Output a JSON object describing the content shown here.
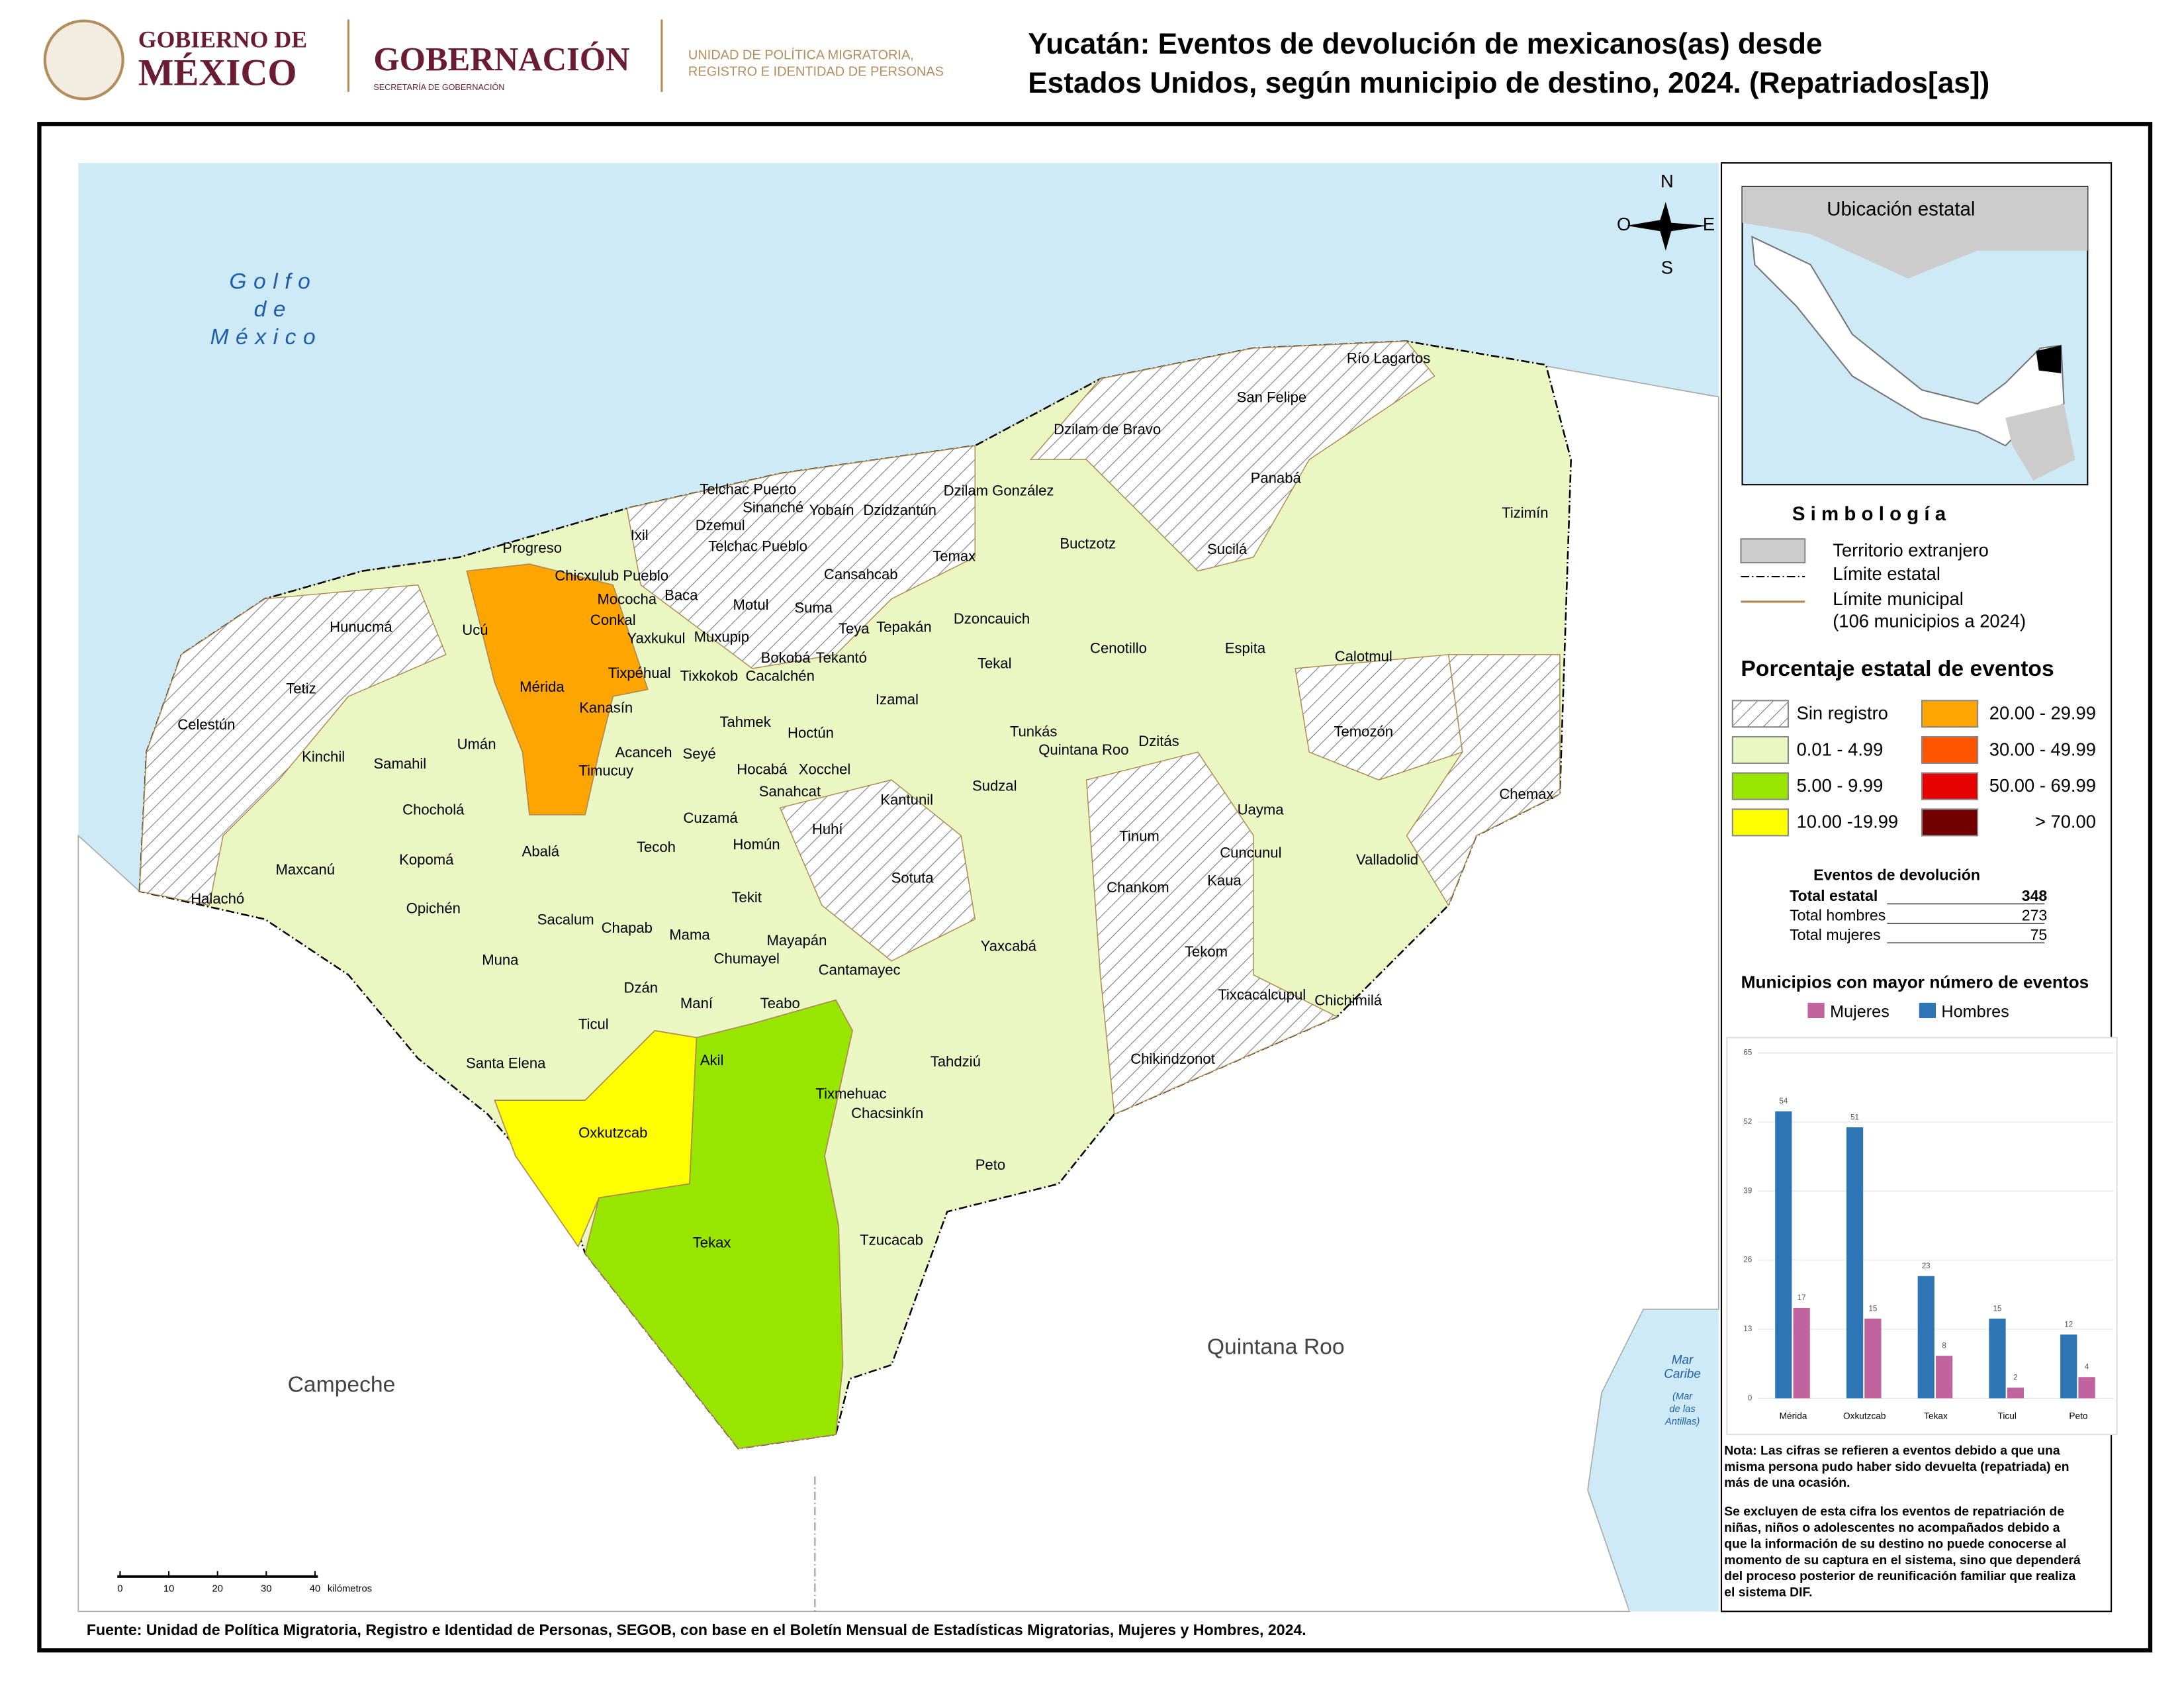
{
  "header": {
    "logo1_line1": "GOBIERNO DE",
    "logo1_line2": "MÉXICO",
    "logo2": "GOBERNACIÓN",
    "logo2_sub": "SECRETARÍA DE GOBERNACIÓN",
    "logo3_line1": "UNIDAD DE POLÍTICA MIGRATORIA,",
    "logo3_line2": "REGISTRO E IDENTIDAD DE PERSONAS"
  },
  "title": [
    "Yucatán: Eventos de devolución de mexicanos(as) desde",
    "Estados Unidos, según municipio de destino, 2024. (Repatriados[as])"
  ],
  "map": {
    "sea_label": [
      "Golfo",
      "de",
      "México"
    ],
    "neighbors": [
      "Campeche",
      "Quintana Roo"
    ],
    "caribe": [
      "Mar",
      "Caribe",
      "(Mar",
      "de las",
      "Antillas)"
    ],
    "compass": [
      "N",
      "O",
      "E",
      "S"
    ],
    "scale": {
      "ticks": [
        0,
        10,
        20,
        30,
        40
      ],
      "unit": "kilómetros"
    },
    "municipalities": [
      "Río Lagartos",
      "San Felipe",
      "Dzilam de Bravo",
      "Panabá",
      "Telchac Puerto",
      "Dzilam González",
      "Sinanché",
      "Yobaín",
      "Dzidzantún",
      "Tizimín",
      "Dzemul",
      "Ixil",
      "Progreso",
      "Telchac Pueblo",
      "Buctzotz",
      "Temax",
      "Sucilá",
      "Chicxulub Pueblo",
      "Cansahcab",
      "Mococha",
      "Baca",
      "Motul",
      "Suma",
      "Dzoncauich",
      "Hunucmá",
      "Conkal",
      "Ucú",
      "Teya",
      "Tepakán",
      "Yaxkukul",
      "Muxupip",
      "Cenotillo",
      "Espita",
      "Calotmul",
      "Bokobá",
      "Tekantó",
      "Tekal",
      "Tixpéhual",
      "Tixkokob",
      "Cacalchén",
      "Tetiz",
      "Mérida",
      "Izamal",
      "Kanasín",
      "Celestún",
      "Tahmek",
      "Hoctún",
      "Tunkás",
      "Temozón",
      "Dzitás",
      "Quintana Roo",
      "Umán",
      "Acanceh",
      "Seyé",
      "Kinchil",
      "Samahil",
      "Timucuy",
      "Hocabá",
      "Xocchel",
      "Sanahcat",
      "Sudzal",
      "Chemax",
      "Kantunil",
      "Chocholá",
      "Cuzamá",
      "Uayma",
      "Huhí",
      "Tinum",
      "Abalá",
      "Tecoh",
      "Homún",
      "Cuncunul",
      "Kopomá",
      "Valladolid",
      "Maxcanú",
      "Sotuta",
      "Kaua",
      "Chankom",
      "Tekit",
      "Halachó",
      "Opichén",
      "Sacalum",
      "Chapab",
      "Mama",
      "Mayapán",
      "Tekom",
      "Yaxcabá",
      "Muna",
      "Chumayel",
      "Cantamayec",
      "Tixcacalcupul",
      "Chichimilá",
      "Dzán",
      "Maní",
      "Teabo",
      "Ticul",
      "Chikindzonot",
      "Tahdziú",
      "Akil",
      "Santa Elena",
      "Tixmehuac",
      "Chacsinkín",
      "Oxkutzcab",
      "Peto",
      "Tzucacab",
      "Tekax"
    ]
  },
  "inset": {
    "title": "Ubicación estatal"
  },
  "symbology": {
    "title": "S i m b o l o g í a",
    "items": [
      "Territorio extranjero",
      "Límite estatal",
      "Límite municipal",
      "(106 municipios a 2024)"
    ]
  },
  "legend": {
    "title": "Porcentaje estatal de eventos",
    "classes": [
      {
        "label": "Sin registro"
      },
      {
        "label": "0.01  - 4.99",
        "color": "#eaf7c2"
      },
      {
        "label": "5.00  - 9.99",
        "color": "#98e600"
      },
      {
        "label": "10.00 -19.99",
        "color": "#ffff00"
      },
      {
        "label": "20.00 - 29.99",
        "color": "#ffa500"
      },
      {
        "label": "30.00 - 49.99",
        "color": "#ff5500"
      },
      {
        "label": "50.00 - 69.99",
        "color": "#e60000"
      },
      {
        "label": "> 70.00",
        "color": "#730000"
      }
    ]
  },
  "stats": {
    "title": "Eventos de devolución",
    "rows": [
      [
        "Total estatal",
        348
      ],
      [
        "Total hombres",
        273
      ],
      [
        "Total mujeres",
        75
      ]
    ]
  },
  "chart_data": {
    "type": "bar",
    "title": "Municipios con mayor número de eventos",
    "categories": [
      "Mérida",
      "Oxkutzcab",
      "Tekax",
      "Ticul",
      "Peto"
    ],
    "series": [
      {
        "name": "Mujeres",
        "color": "#c0639e",
        "values": [
          17,
          15,
          8,
          2,
          4
        ]
      },
      {
        "name": "Hombres",
        "color": "#2e75b6",
        "values": [
          54,
          51,
          23,
          15,
          12
        ]
      }
    ],
    "ylim": [
      0,
      65
    ],
    "yticks": [
      0,
      13,
      26,
      39,
      52,
      65
    ],
    "grid": true
  },
  "notes": [
    "Nota: Las cifras se refieren a eventos debido a que una",
    "misma persona pudo haber sido devuelta (repatriada) en",
    "más de una ocasión.",
    "Se excluyen de esta cifra los eventos de repatriación de",
    "niñas, niños o adolescentes no acompañados debido a",
    "que la información de su destino no puede conocerse al",
    "momento de su captura en el sistema, sino que dependerá",
    "del proceso posterior de reunificación familiar que realiza",
    "el sistema DIF."
  ],
  "source": "Fuente: Unidad de Política Migratoria, Registro e Identidad de Personas, SEGOB, con base en el Boletín Mensual de Estadísticas Migratorias, Mujeres y Hombres, 2024."
}
